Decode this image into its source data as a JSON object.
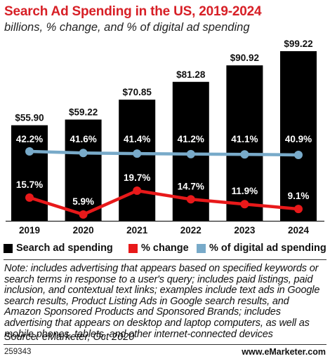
{
  "title": "Search Ad Spending in the US, 2019-2024",
  "subtitle": "billions, % change, and % of digital ad spending",
  "note": "Note: includes advertising that appears based on specified keywords or search terms in response to a user's query; includes paid listings, paid inclusion, and contextual text links; examples include text ads in Google search results, Product Listing Ads in Google search results, and Amazon Sponsored Products and Sponsored Brands; includes advertising that appears on desktop and laptop computers, as well as mobile phones, tablets, and other internet-connected devices",
  "source": "Source: eMarketer, Oct 2020",
  "chart_id": "259343",
  "brand": "www.eMarketer.com",
  "colors": {
    "title": "#d71f26",
    "bars": "#000000",
    "change_line": "#e8191a",
    "share_line": "#78aac9"
  },
  "chart_data": {
    "type": "bar",
    "categories": [
      "2019",
      "2020",
      "2021",
      "2022",
      "2023",
      "2024"
    ],
    "series": [
      {
        "name": "Search ad spending",
        "type": "bar",
        "values": [
          55.9,
          59.22,
          70.85,
          81.28,
          90.92,
          99.22
        ],
        "labels": [
          "$55.90",
          "$59.22",
          "$70.85",
          "$81.28",
          "$90.92",
          "$99.22"
        ]
      },
      {
        "name": "% change",
        "type": "line",
        "values": [
          15.7,
          5.9,
          19.7,
          14.7,
          11.9,
          9.1
        ],
        "labels": [
          "15.7%",
          "5.9%",
          "19.7%",
          "14.7%",
          "11.9%",
          "9.1%"
        ]
      },
      {
        "name": "% of digital ad spending",
        "type": "line",
        "values": [
          42.2,
          41.6,
          41.4,
          41.2,
          41.1,
          40.9
        ],
        "labels": [
          "42.2%",
          "41.6%",
          "41.4%",
          "41.2%",
          "41.1%",
          "40.9%"
        ]
      }
    ],
    "legend_position": "bottom",
    "grid": false
  }
}
